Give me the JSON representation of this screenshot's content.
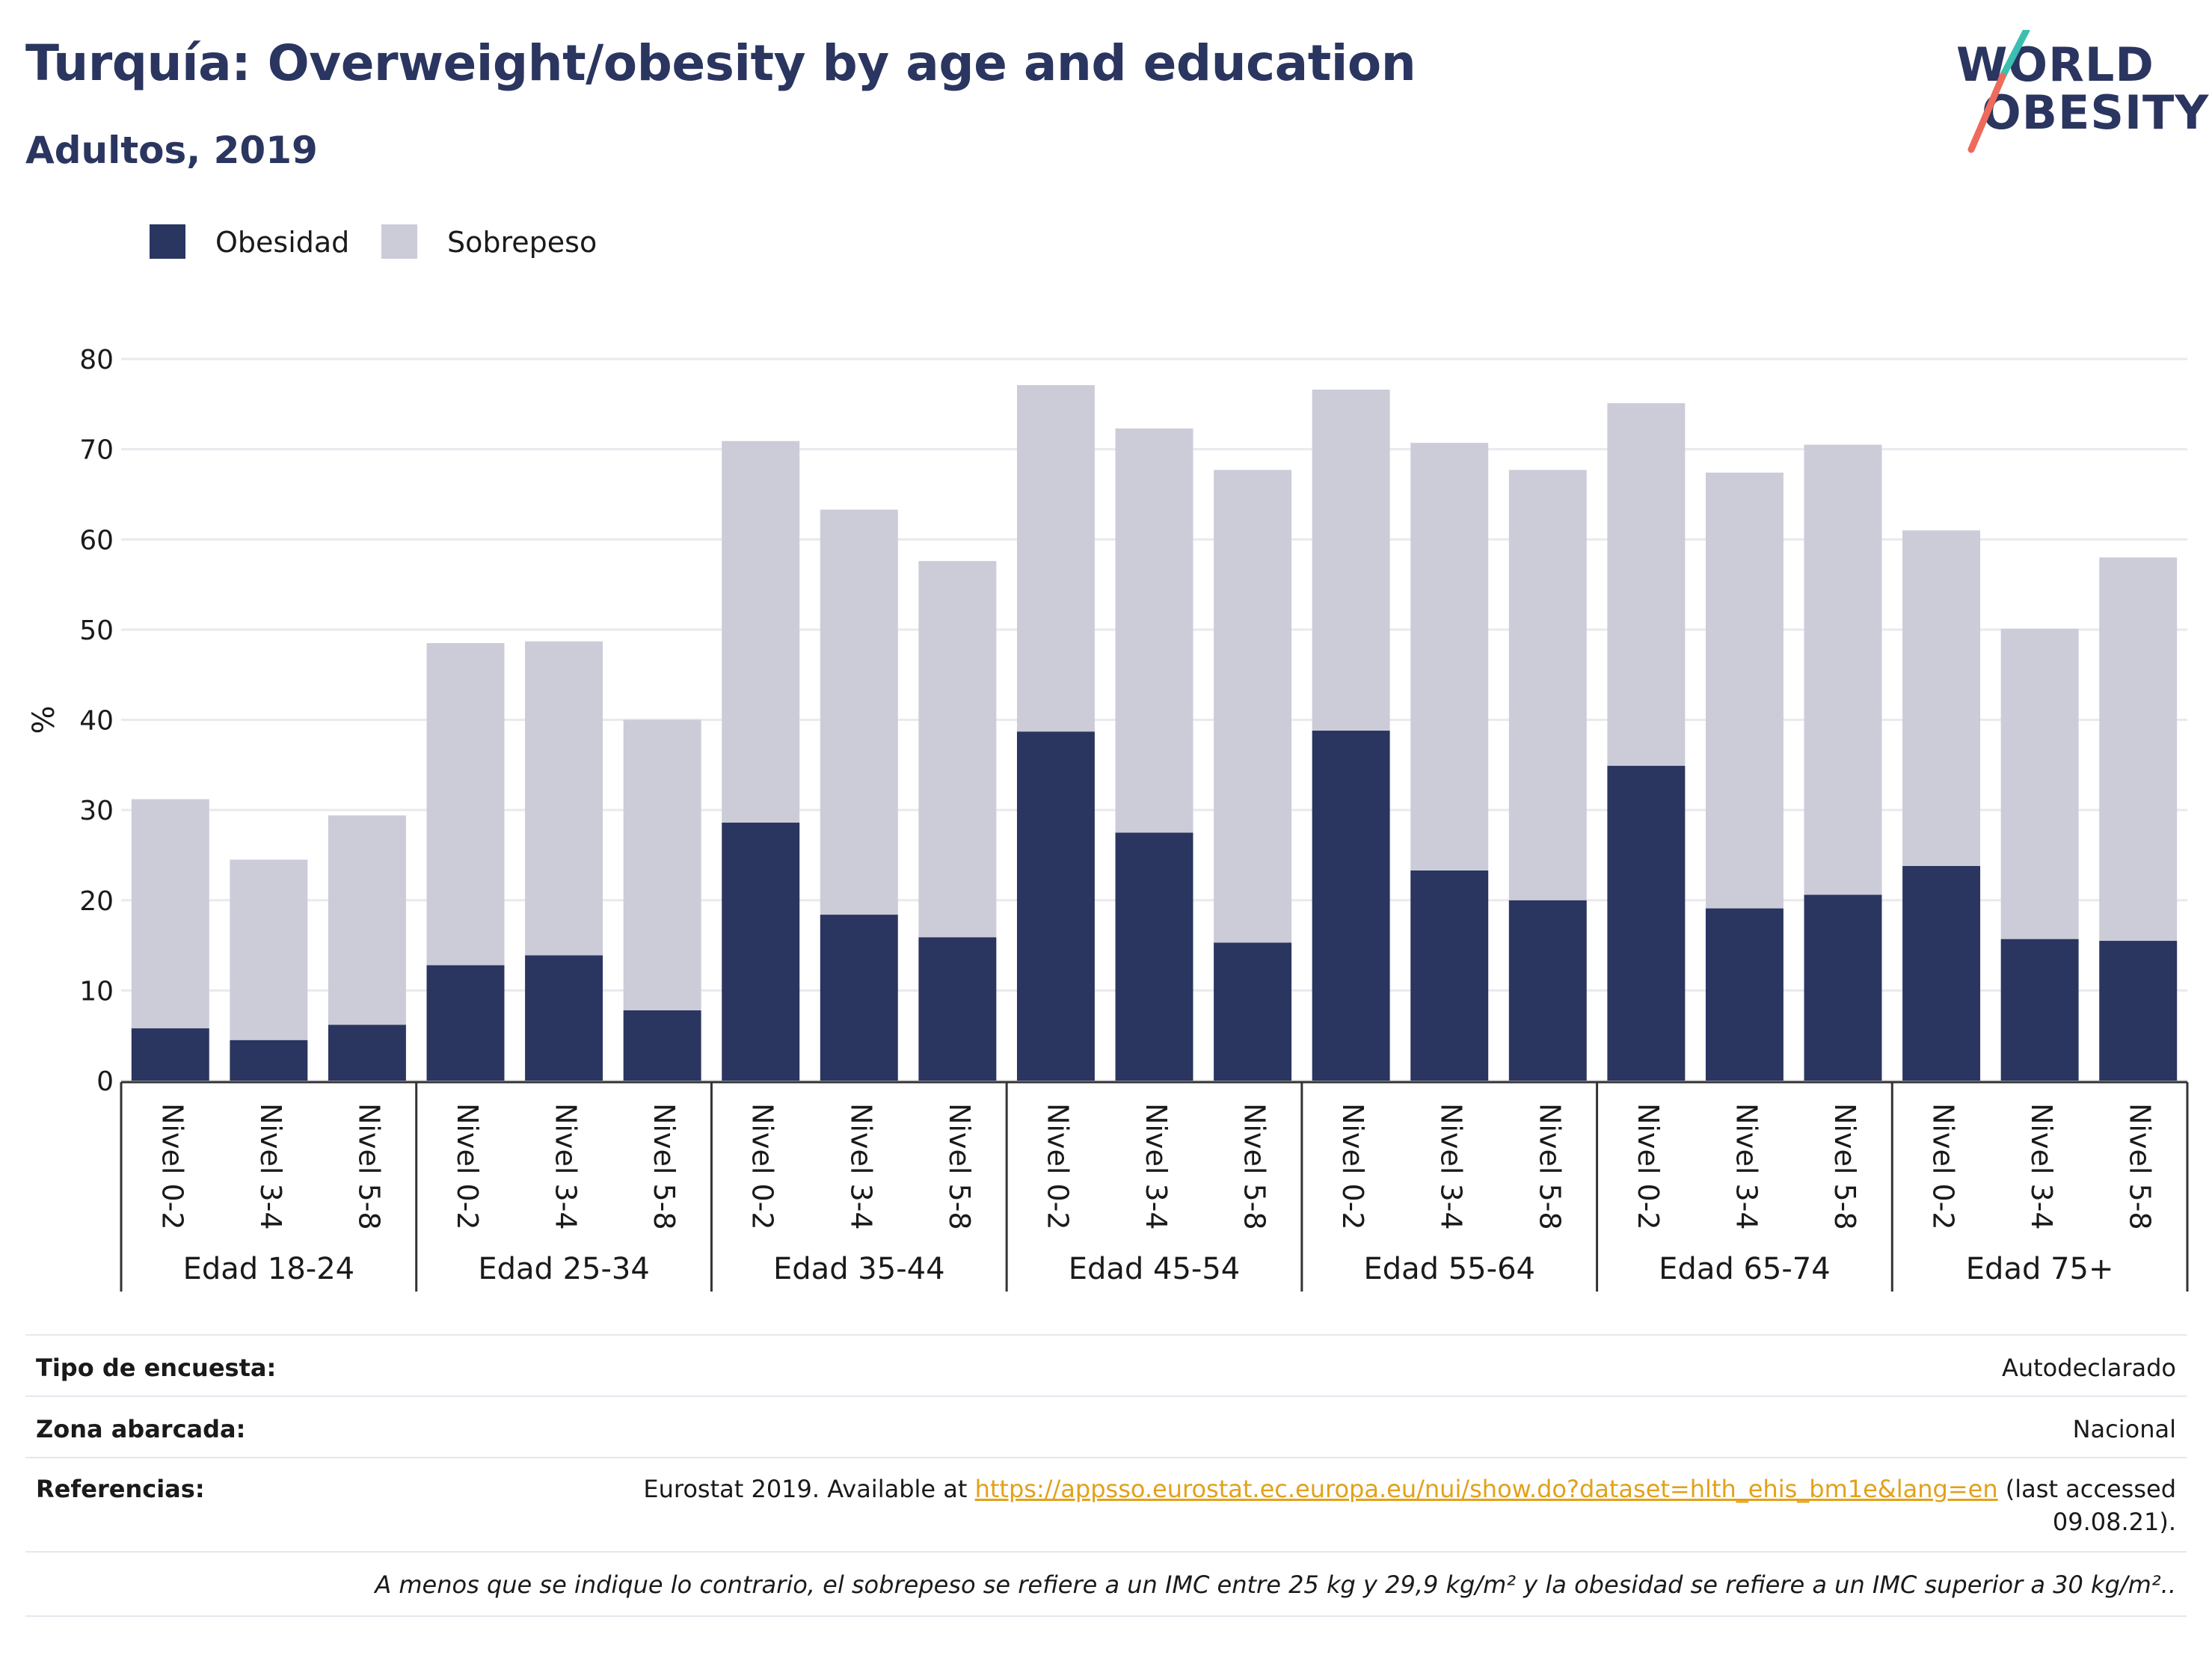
{
  "header": {
    "title": "Turquía: Overweight/obesity by age and education",
    "subtitle": "Adultos, 2019"
  },
  "logo": {
    "line1": "WORLD",
    "line2": "OBESITY"
  },
  "legend": [
    {
      "label": "Obesidad",
      "color": "#2a3560"
    },
    {
      "label": "Sobrepeso",
      "color": "#cbccd8"
    }
  ],
  "chart_data": {
    "type": "bar",
    "stacked": true,
    "ylabel": "%",
    "ylim": [
      0,
      80
    ],
    "yticks": [
      0,
      10,
      20,
      30,
      40,
      50,
      60,
      70,
      80
    ],
    "grid": true,
    "legend_position": "top-left",
    "groups": [
      "Edad 18-24",
      "Edad 25-34",
      "Edad 35-44",
      "Edad 45-54",
      "Edad 55-64",
      "Edad 65-74",
      "Edad 75+"
    ],
    "subcategories": [
      "Nivel 0-2",
      "Nivel 3-4",
      "Nivel 5-8"
    ],
    "series": [
      {
        "name": "Obesidad",
        "color": "#2a3560",
        "values": [
          5.8,
          4.5,
          6.2,
          12.8,
          13.9,
          7.8,
          28.6,
          18.4,
          15.9,
          38.7,
          27.5,
          15.3,
          38.8,
          23.3,
          20.0,
          34.9,
          19.1,
          20.6,
          23.8,
          15.7,
          15.5
        ]
      },
      {
        "name": "Sobrepeso",
        "color": "#cbccd8",
        "values": [
          25.4,
          20.0,
          23.2,
          35.7,
          34.8,
          32.2,
          42.3,
          44.9,
          41.7,
          38.4,
          44.8,
          52.4,
          37.8,
          47.4,
          47.7,
          40.2,
          48.3,
          49.9,
          37.2,
          34.4,
          42.5
        ]
      }
    ],
    "totals": [
      31.2,
      24.5,
      29.4,
      48.5,
      48.7,
      40.0,
      70.9,
      63.3,
      57.6,
      77.1,
      72.3,
      67.7,
      76.6,
      70.7,
      67.7,
      75.1,
      67.4,
      70.5,
      61.0,
      50.1,
      58.0
    ]
  },
  "info": {
    "survey_label": "Tipo de encuesta:",
    "survey_value": "Autodeclarado",
    "area_label": "Zona abarcada:",
    "area_value": "Nacional",
    "refs_label": "Referencias:",
    "refs_prefix": "Eurostat 2019. Available at ",
    "refs_link": "https://appsso.eurostat.ec.europa.eu/nui/show.do?dataset=hlth_ehis_bm1e&lang=en",
    "refs_suffix": " (last accessed",
    "refs_date": "09.08.21).",
    "footnote": "A menos que se indique lo contrario, el sobrepeso se refiere a un IMC entre 25 kg y 29,9 kg/m² y la obesidad se refiere a un IMC superior a 30 kg/m².."
  }
}
